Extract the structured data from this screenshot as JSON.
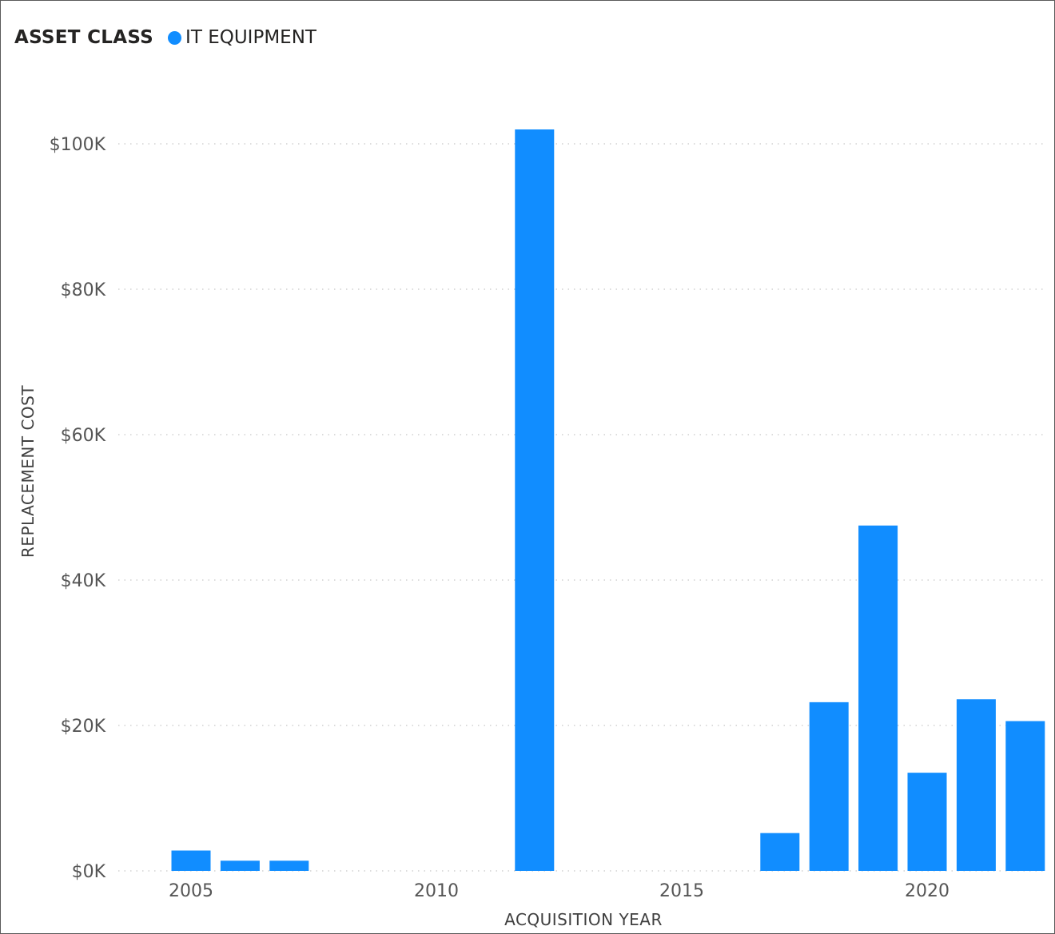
{
  "legend": {
    "title": "ASSET CLASS",
    "series_label": "IT EQUIPMENT"
  },
  "chart_data": {
    "type": "bar",
    "xlabel": "ACQUISITION YEAR",
    "ylabel": "REPLACEMENT COST",
    "ylim": [
      0,
      100000
    ],
    "xlim": [
      2003.5,
      2022.5
    ],
    "y_ticks": [
      {
        "value": 0,
        "label": "$0K"
      },
      {
        "value": 20000,
        "label": "$20K"
      },
      {
        "value": 40000,
        "label": "$40K"
      },
      {
        "value": 60000,
        "label": "$60K"
      },
      {
        "value": 80000,
        "label": "$80K"
      },
      {
        "value": 100000,
        "label": "$100K"
      }
    ],
    "x_ticks": [
      {
        "value": 2005,
        "label": "2005"
      },
      {
        "value": 2010,
        "label": "2010"
      },
      {
        "value": 2015,
        "label": "2015"
      },
      {
        "value": 2020,
        "label": "2020"
      }
    ],
    "grid": "horizontal-dotted",
    "legend_position": "top-left",
    "series": [
      {
        "name": "IT EQUIPMENT",
        "color": "#118DFF",
        "points": [
          {
            "x": 2005,
            "y": 2800
          },
          {
            "x": 2006,
            "y": 1400
          },
          {
            "x": 2007,
            "y": 1400
          },
          {
            "x": 2012,
            "y": 102000
          },
          {
            "x": 2017,
            "y": 5200
          },
          {
            "x": 2018,
            "y": 23200
          },
          {
            "x": 2019,
            "y": 47500
          },
          {
            "x": 2020,
            "y": 13500
          },
          {
            "x": 2021,
            "y": 23600
          },
          {
            "x": 2022,
            "y": 20600
          }
        ]
      }
    ]
  },
  "colors": {
    "series": "#118DFF",
    "grid": "#c8c8c8",
    "text": "#555555"
  }
}
